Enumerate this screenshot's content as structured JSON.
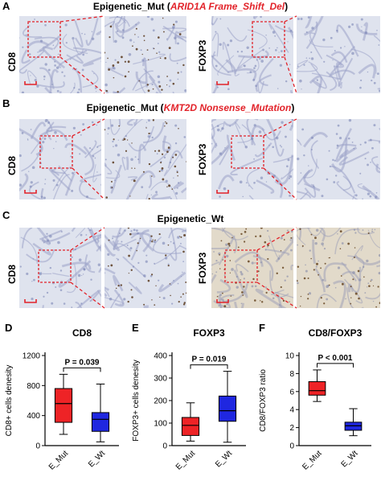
{
  "panels": {
    "A": {
      "letter": "A",
      "title_prefix": "Epigenetic_Mut (",
      "title_gene": "ARID1A Frame_Shift_Del",
      "title_suffix": ")",
      "stain_left": "CD8",
      "stain_right": "FOXP3"
    },
    "B": {
      "letter": "B",
      "title_prefix": "Epigenetic_Mut (",
      "title_gene": "KMT2D Nonsense_Mutation",
      "title_suffix": ")",
      "stain_left": "CD8",
      "stain_right": "FOXP3"
    },
    "C": {
      "letter": "C",
      "title": "Epigenetic_Wt",
      "stain_left": "CD8",
      "stain_right": "FOXP3"
    }
  },
  "colors": {
    "accent_red": "#e2232a",
    "mut_box": "#ee2326",
    "wt_box": "#1f27e0",
    "tissue_bg": "#dfe3ee",
    "tissue_stain": "#9aa3c8"
  },
  "chart_data": [
    {
      "panel_letter": "D",
      "type": "box",
      "title": "CD8",
      "ylabel": "CD8+ cells denesity",
      "ylim": [
        0,
        1200
      ],
      "yticks": [
        0,
        400,
        800,
        1200
      ],
      "categories": [
        "E_Mut",
        "E_Wt"
      ],
      "series": [
        {
          "name": "E_Mut",
          "color": "#ee2326",
          "min": 150,
          "q1": 310,
          "median": 560,
          "q3": 760,
          "max": 950
        },
        {
          "name": "E_Wt",
          "color": "#1f27e0",
          "min": 50,
          "q1": 190,
          "median": 350,
          "q3": 440,
          "max": 820
        }
      ],
      "annotation": "P = 0.039"
    },
    {
      "panel_letter": "E",
      "type": "box",
      "title": "FOXP3",
      "ylabel": "FOXP3+ cells denesity",
      "ylim": [
        0,
        400
      ],
      "yticks": [
        0,
        100,
        200,
        300,
        400
      ],
      "categories": [
        "E_Mut",
        "E_Wt"
      ],
      "series": [
        {
          "name": "E_Mut",
          "color": "#ee2326",
          "min": 20,
          "q1": 45,
          "median": 90,
          "q3": 125,
          "max": 190
        },
        {
          "name": "E_Wt",
          "color": "#1f27e0",
          "min": 15,
          "q1": 108,
          "median": 155,
          "q3": 220,
          "max": 330
        }
      ],
      "annotation": "P = 0.019"
    },
    {
      "panel_letter": "F",
      "type": "box",
      "title": "CD8/FOXP3",
      "ylabel": "CD8/FOXP3 ratio",
      "ylim": [
        0,
        10
      ],
      "yticks": [
        0,
        2,
        4,
        6,
        8,
        10
      ],
      "categories": [
        "E_Mut",
        "E_Wt"
      ],
      "series": [
        {
          "name": "E_Mut",
          "color": "#ee2326",
          "min": 4.9,
          "q1": 5.6,
          "median": 6.1,
          "q3": 7.1,
          "max": 8.4
        },
        {
          "name": "E_Wt",
          "color": "#1f27e0",
          "min": 1.1,
          "q1": 1.7,
          "median": 2.2,
          "q3": 2.6,
          "max": 4.1
        }
      ],
      "annotation": "P < 0.001"
    }
  ]
}
